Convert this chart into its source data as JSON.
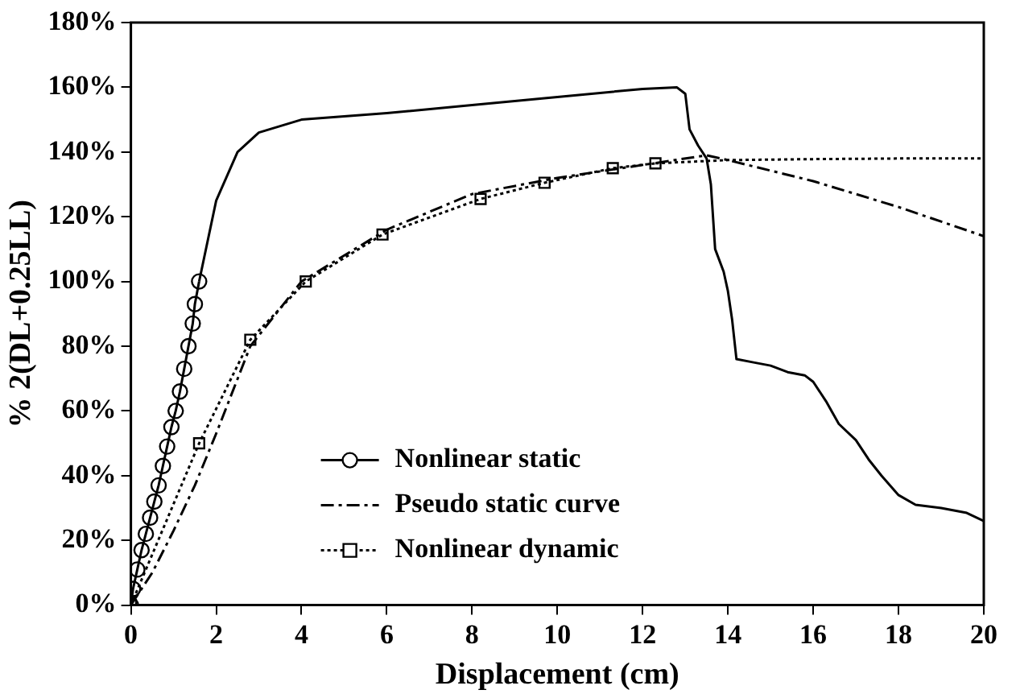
{
  "chart_data": {
    "type": "line",
    "xlabel": "Displacement (cm)",
    "ylabel": "% 2(DL+0.25LL)",
    "xlim": [
      0,
      20
    ],
    "xticks": [
      0,
      2,
      4,
      6,
      8,
      10,
      12,
      14,
      16,
      18,
      20
    ],
    "ylim": [
      0,
      180
    ],
    "yticks": [
      {
        "value": 0,
        "label": "0%"
      },
      {
        "value": 20,
        "label": "20%"
      },
      {
        "value": 40,
        "label": "40%"
      },
      {
        "value": 60,
        "label": "60%"
      },
      {
        "value": 80,
        "label": "80%"
      },
      {
        "value": 100,
        "label": "100%"
      },
      {
        "value": 120,
        "label": "120%"
      },
      {
        "value": 140,
        "label": "140%"
      },
      {
        "value": 160,
        "label": "160%"
      },
      {
        "value": 180,
        "label": "180%"
      }
    ],
    "grid": false,
    "legend": "bottom left",
    "series": [
      {
        "name": "Nonlinear static",
        "color": "#000000",
        "marker": "circle",
        "line_style": "solid",
        "x": [
          0,
          0.05,
          0.15,
          0.25,
          0.35,
          0.45,
          0.55,
          0.65,
          0.75,
          0.85,
          0.95,
          1.05,
          1.15,
          1.25,
          1.35,
          1.45,
          1.5,
          1.6
        ],
        "values": [
          0,
          5,
          11,
          17,
          22,
          27,
          32,
          37,
          43,
          49,
          55,
          60,
          66,
          73,
          80,
          87,
          93,
          100
        ]
      },
      {
        "color": "#000000",
        "marker": "none",
        "line_style": "solid",
        "x": [
          1.6,
          2,
          2.5,
          3,
          4,
          6,
          8,
          10,
          12,
          12.8,
          13,
          13.1,
          13.3,
          13.5,
          13.6,
          13.7,
          13.9,
          14,
          14.1,
          14.2,
          14.6,
          15,
          15.4,
          15.8,
          16,
          16.3,
          16.6,
          17,
          17.3,
          17.6,
          18,
          18.4,
          19,
          19.6,
          20
        ],
        "values": [
          100,
          125,
          140,
          146,
          150,
          152,
          154.5,
          157,
          159.5,
          160,
          158,
          147,
          142,
          138,
          130,
          110,
          103,
          97,
          88,
          76,
          75,
          74,
          72,
          71,
          69,
          63,
          56,
          51,
          45,
          40,
          34,
          31,
          30,
          28.5,
          26
        ]
      },
      {
        "name": "Pseudo static curve",
        "color": "#000000",
        "marker": "none",
        "line_style": "dashdot",
        "x": [
          0,
          0.5,
          1,
          1.5,
          2,
          2.8,
          4,
          6,
          8,
          10,
          12,
          13.5,
          14,
          16,
          18,
          20
        ],
        "values": [
          0,
          10,
          23,
          37,
          53,
          80,
          100,
          116,
          127,
          132,
          136,
          139,
          137.5,
          131,
          123,
          114
        ]
      },
      {
        "name": "Nonlinear dynamic",
        "color": "#000000",
        "marker": "square",
        "line_style": "dotted",
        "x": [
          0,
          1.6,
          2.8,
          4.1,
          5.9,
          8.2,
          9.7,
          11.3,
          12.3
        ],
        "values": [
          0,
          50,
          82,
          100,
          114.5,
          125.5,
          130.5,
          135,
          136.5
        ]
      },
      {
        "color": "#000000",
        "marker": "none",
        "line_style": "dotted",
        "x": [
          12.3,
          14,
          16,
          18,
          20
        ],
        "values": [
          136.5,
          137.5,
          137.8,
          138,
          138
        ]
      }
    ]
  }
}
